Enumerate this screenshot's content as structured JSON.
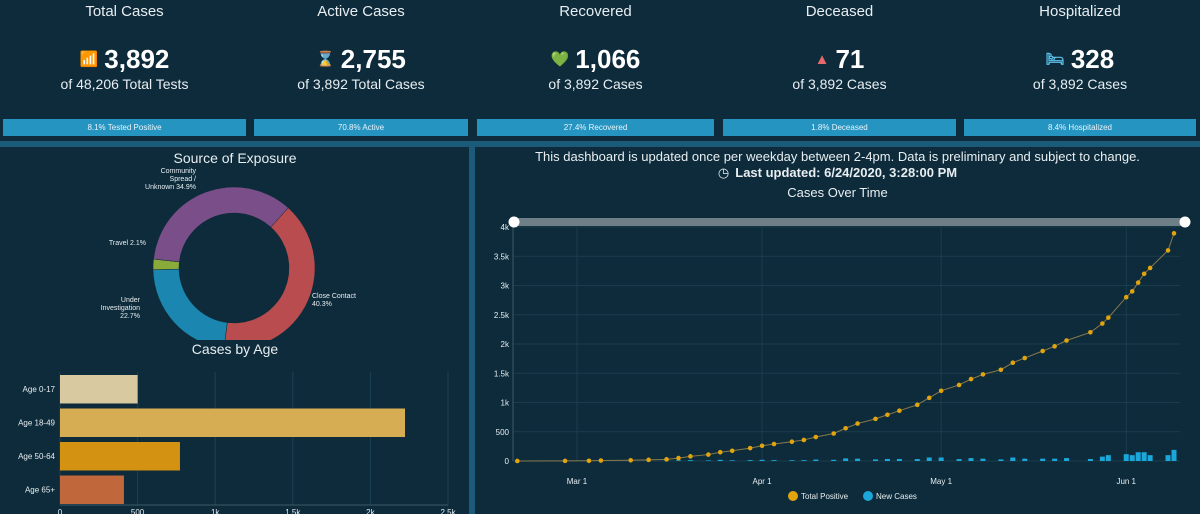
{
  "kpis": [
    {
      "title": "Total Cases",
      "value": "3,892",
      "icon": "trend-chart-icon",
      "icon_glyph": "📶",
      "sub": "of 48,206 Total Tests",
      "bar": "8.1% Tested Positive"
    },
    {
      "title": "Active Cases",
      "value": "2,755",
      "icon": "hourglass-icon",
      "icon_glyph": "⌛",
      "sub": "of 3,892 Total Cases",
      "bar": "70.8% Active"
    },
    {
      "title": "Recovered",
      "value": "1,066",
      "icon": "heart-recovered-icon",
      "icon_glyph": "💚",
      "sub": "of 3,892 Cases",
      "bar": "27.4% Recovered"
    },
    {
      "title": "Deceased",
      "value": "71",
      "icon": "warning-icon",
      "icon_glyph": "▲",
      "sub": "of 3,892 Cases",
      "bar": "1.8% Deceased"
    },
    {
      "title": "Hospitalized",
      "value": "328",
      "icon": "hospital-bed-icon",
      "icon_glyph": "🛏",
      "sub": "of 3,892 Cases",
      "bar": "8.4% Hospitalized"
    }
  ],
  "colors": {
    "bg": "#0d2b3a",
    "bar": "#2694c0",
    "deceased_icon": "#e8696b",
    "hosp_icon": "#5bc0e8",
    "recovered_icon": "#8fd14f",
    "active_icon": "#f0c040"
  },
  "notice": "This dashboard is updated once per weekday between 2-4pm. Data is preliminary and subject to change.",
  "last_updated": "Last updated: 6/24/2020, 3:28:00 PM",
  "chart_data": [
    {
      "type": "pie",
      "title": "Source of Exposure",
      "slices": [
        {
          "label": "Close Contact",
          "value": 40.3,
          "display": "Close Contact 40.3%",
          "color": "#b84c4e"
        },
        {
          "label": "Under Investigation",
          "value": 22.7,
          "display": "Under Investigation 22.7%",
          "color": "#1b86b0"
        },
        {
          "label": "Travel",
          "value": 2.1,
          "display": "Travel 2.1%",
          "color": "#8aaa3a"
        },
        {
          "label": "Community Spread / Unknown",
          "value": 34.9,
          "display": "Community Spread / Unknown 34.9%",
          "color": "#7a4e88"
        }
      ]
    },
    {
      "type": "bar",
      "title": "Cases by Age",
      "categories": [
        "Age 0-17",
        "Age 18-49",
        "Age 50-64",
        "Age 65+"
      ],
      "values": [
        500,
        2223,
        773,
        412
      ],
      "colors": [
        "#d9c9a0",
        "#d6ad52",
        "#d39212",
        "#c0673c"
      ],
      "xlim": [
        0,
        2500
      ],
      "ticks": [
        "0",
        "500",
        "1k",
        "1.5k",
        "2k",
        "2.5k"
      ]
    },
    {
      "type": "line",
      "title": "Cases Over Time",
      "ylim": [
        0,
        4000
      ],
      "yticks": [
        "0",
        "500",
        "1k",
        "1.5k",
        "2k",
        "2.5k",
        "3k",
        "3.5k",
        "4k"
      ],
      "xticks": [
        {
          "label": "Mar 1",
          "date": "2020-03-01"
        },
        {
          "label": "Apr 1",
          "date": "2020-04-01"
        },
        {
          "label": "May 1",
          "date": "2020-05-01"
        },
        {
          "label": "Jun 1",
          "date": "2020-06-01"
        }
      ],
      "legend": [
        "Total Positive",
        "New Cases"
      ],
      "series_colors": [
        "#e2a40e",
        "#1ba7d9"
      ],
      "dates": [
        "2020-02-20",
        "2020-02-28",
        "2020-03-03",
        "2020-03-05",
        "2020-03-10",
        "2020-03-13",
        "2020-03-16",
        "2020-03-18",
        "2020-03-20",
        "2020-03-23",
        "2020-03-25",
        "2020-03-27",
        "2020-03-30",
        "2020-04-01",
        "2020-04-03",
        "2020-04-06",
        "2020-04-08",
        "2020-04-10",
        "2020-04-13",
        "2020-04-15",
        "2020-04-17",
        "2020-04-20",
        "2020-04-22",
        "2020-04-24",
        "2020-04-27",
        "2020-04-29",
        "2020-05-01",
        "2020-05-04",
        "2020-05-06",
        "2020-05-08",
        "2020-05-11",
        "2020-05-13",
        "2020-05-15",
        "2020-05-18",
        "2020-05-20",
        "2020-05-22",
        "2020-05-26",
        "2020-05-28",
        "2020-05-29",
        "2020-06-01",
        "2020-06-02",
        "2020-06-03",
        "2020-06-04",
        "2020-06-05",
        "2020-06-08",
        "2020-06-09"
      ],
      "total_positive": [
        1,
        2,
        4,
        8,
        12,
        20,
        28,
        50,
        80,
        110,
        150,
        175,
        220,
        260,
        290,
        330,
        360,
        410,
        470,
        560,
        640,
        720,
        790,
        860,
        960,
        1080,
        1200,
        1300,
        1400,
        1480,
        1560,
        1680,
        1760,
        1880,
        1960,
        2060,
        2200,
        2350,
        2450,
        2800,
        2900,
        3050,
        3200,
        3300,
        3600,
        3892
      ],
      "new_cases": [
        1,
        1,
        1,
        2,
        1,
        3,
        3,
        11,
        15,
        10,
        20,
        12,
        15,
        20,
        15,
        13,
        15,
        25,
        20,
        45,
        40,
        27,
        35,
        35,
        33,
        60,
        60,
        33,
        50,
        40,
        27,
        60,
        40,
        40,
        40,
        50,
        35,
        75,
        100,
        117,
        100,
        150,
        150,
        100,
        100,
        190
      ]
    }
  ]
}
